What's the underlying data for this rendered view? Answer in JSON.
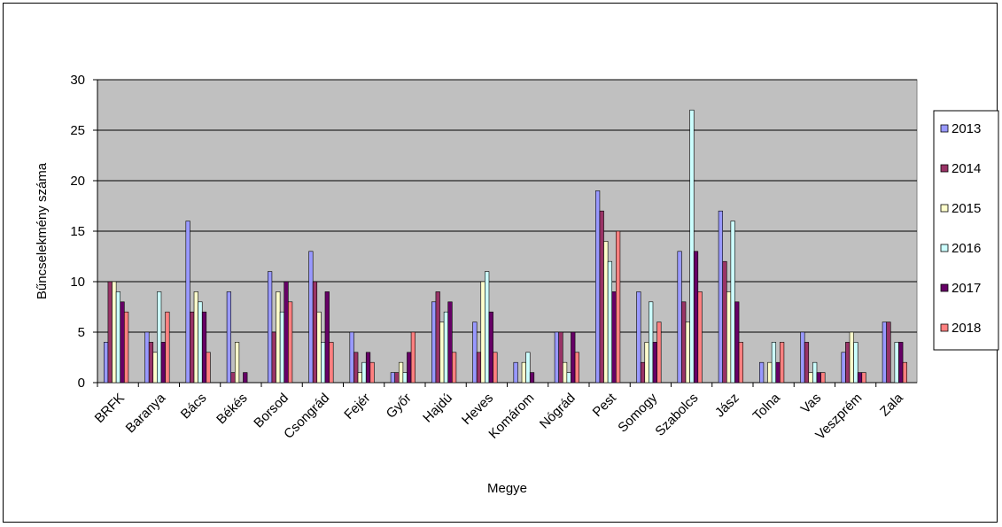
{
  "chart_data": {
    "type": "bar",
    "title": "",
    "xlabel": "Megye",
    "ylabel": "Bűncselekmény száma",
    "ylim": [
      0,
      30
    ],
    "yticks": [
      0,
      5,
      10,
      15,
      20,
      25,
      30
    ],
    "grid": true,
    "legend_position": "right",
    "plot_background": "#c0c0c0",
    "categories": [
      "BRFK",
      "Baranya",
      "Bács",
      "Békés",
      "Borsod",
      "Csongrád",
      "Fejér",
      "Győr",
      "Hajdú",
      "Heves",
      "Komárom",
      "Nógrád",
      "Pest",
      "Somogy",
      "Szabolcs",
      "Jász",
      "Tolna",
      "Vas",
      "Veszprém",
      "Zala"
    ],
    "series": [
      {
        "name": "2013",
        "color": "#9999ff",
        "values": [
          4,
          5,
          16,
          9,
          11,
          13,
          5,
          1,
          8,
          6,
          2,
          5,
          19,
          9,
          13,
          17,
          2,
          5,
          3,
          6
        ]
      },
      {
        "name": "2014",
        "color": "#993366",
        "values": [
          10,
          4,
          7,
          1,
          5,
          10,
          3,
          1,
          9,
          3,
          0,
          5,
          17,
          2,
          8,
          12,
          0,
          4,
          4,
          6
        ]
      },
      {
        "name": "2015",
        "color": "#ffffcc",
        "values": [
          10,
          3,
          9,
          4,
          9,
          7,
          1,
          2,
          6,
          10,
          2,
          2,
          14,
          4,
          6,
          9,
          2,
          1,
          5,
          0
        ]
      },
      {
        "name": "2016",
        "color": "#ccffff",
        "values": [
          9,
          9,
          8,
          0,
          7,
          4,
          2,
          1,
          7,
          11,
          3,
          1,
          12,
          8,
          27,
          16,
          4,
          2,
          4,
          4
        ]
      },
      {
        "name": "2017",
        "color": "#660066",
        "values": [
          8,
          4,
          7,
          1,
          10,
          9,
          3,
          3,
          8,
          7,
          1,
          5,
          9,
          4,
          13,
          8,
          2,
          1,
          1,
          4
        ]
      },
      {
        "name": "2018",
        "color": "#ff8080",
        "values": [
          7,
          7,
          3,
          0,
          8,
          4,
          2,
          5,
          3,
          3,
          0,
          3,
          15,
          6,
          9,
          4,
          4,
          1,
          1,
          2
        ]
      }
    ]
  }
}
